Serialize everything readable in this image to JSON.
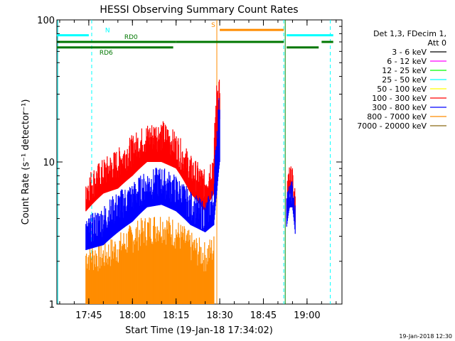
{
  "chart_data": {
    "type": "line",
    "title": "HESSI Observing Summary Count Rates",
    "xlabel": "Start Time (19-Jan-18 17:34:02)",
    "ylabel": "Count Rate (s⁻¹ detector⁻¹)",
    "y_scale": "log",
    "ylim": [
      1,
      100
    ],
    "xlim": [
      "17:34:02",
      "19:12:00"
    ],
    "x_ticks": [
      "17:45",
      "18:00",
      "18:15",
      "18:30",
      "18:45",
      "19:00"
    ],
    "y_ticks": [
      "1",
      "10",
      "100"
    ],
    "grid": false,
    "legend_placement": "right",
    "legend_header": [
      "Det 1,3, FDecim 1,",
      "Att 0"
    ],
    "series": [
      {
        "name": "3 - 6 keV",
        "color": "#000000"
      },
      {
        "name": "6 - 12 keV",
        "color": "#ff00ff"
      },
      {
        "name": "12 - 25 keV",
        "color": "#00ff00"
      },
      {
        "name": "25 - 50 keV",
        "color": "#00ffff"
      },
      {
        "name": "50 - 100 keV",
        "color": "#ffff00"
      },
      {
        "name": "100 - 300 keV",
        "color": "#ff0000"
      },
      {
        "name": "300 - 800 keV",
        "color": "#0000ff"
      },
      {
        "name": "800 - 7000 keV",
        "color": "#ff8c00"
      },
      {
        "name": "7000 - 20000 keV",
        "color": "#8b6914"
      }
    ],
    "envelopes": {
      "100 - 300 keV": {
        "x": [
          "17:44",
          "17:50",
          "17:55",
          "18:00",
          "18:05",
          "18:10",
          "18:15",
          "18:20",
          "18:25",
          "18:28",
          "18:29",
          "18:30"
        ],
        "low": [
          4.5,
          6,
          6.5,
          8,
          10,
          10,
          9,
          6,
          4.5,
          6,
          12,
          20
        ],
        "high": [
          6.5,
          8.5,
          10,
          12.5,
          15,
          16,
          13,
          9,
          7,
          10,
          30,
          36
        ]
      },
      "300 - 800 keV": {
        "x": [
          "17:44",
          "17:50",
          "17:55",
          "18:00",
          "18:05",
          "18:10",
          "18:15",
          "18:20",
          "18:25",
          "18:28",
          "18:29",
          "18:30"
        ],
        "low": [
          2.4,
          2.6,
          3.2,
          3.8,
          4.8,
          5,
          4.5,
          3.6,
          3.2,
          3.6,
          6,
          10
        ],
        "high": [
          3.2,
          4,
          5,
          5.8,
          7,
          7.5,
          6.5,
          5,
          4.2,
          5.5,
          15,
          26
        ]
      },
      "800 - 7000 keV": {
        "x": [
          "17:44",
          "17:50",
          "17:55",
          "18:00",
          "18:05",
          "18:10",
          "18:15",
          "18:20",
          "18:25",
          "18:28"
        ],
        "low": [
          1,
          1,
          1,
          1,
          1,
          1,
          1,
          1,
          1,
          1
        ],
        "high": [
          2.2,
          2.2,
          2.5,
          3,
          3.4,
          3.6,
          3.2,
          2.6,
          2.2,
          2.5
        ]
      },
      "after_gap_100 - 300 keV": {
        "x": [
          "18:53",
          "18:54",
          "18:55",
          "18:56"
        ],
        "low": [
          4,
          6,
          6,
          3.6
        ],
        "high": [
          6.5,
          7.5,
          7.5,
          5
        ]
      },
      "after_gap_300 - 800 keV": {
        "x": [
          "18:53",
          "18:54",
          "18:55",
          "18:56"
        ],
        "low": [
          3.5,
          4.8,
          4.8,
          3
        ],
        "high": [
          5.2,
          6,
          6,
          4
        ]
      }
    },
    "flag_bars": [
      {
        "label": "N",
        "color": "#00ffff",
        "start": "17:34",
        "end": "17:45",
        "level": 78
      },
      {
        "label": "",
        "color": "#00ffff",
        "start": "18:53",
        "end": "19:09",
        "level": 78
      },
      {
        "label": "S",
        "color": "#ff8c00",
        "start": "18:30",
        "end": "18:52",
        "level": 85
      },
      {
        "label": "RD0",
        "color": "#007700",
        "start": "17:34",
        "end": "18:15",
        "level": 70
      },
      {
        "label": "",
        "color": "#007700",
        "start": "18:15",
        "end": "18:52",
        "level": 70
      },
      {
        "label": "RD6",
        "color": "#007700",
        "start": "17:34",
        "end": "18:14",
        "level": 64
      },
      {
        "label": "",
        "color": "#007700",
        "start": "18:53",
        "end": "19:04",
        "level": 64
      },
      {
        "label": "",
        "color": "#007700",
        "start": "19:05",
        "end": "19:09",
        "level": 70
      }
    ],
    "vlines": [
      {
        "t": "17:34:20",
        "color": "#00ffff",
        "style": "solid"
      },
      {
        "t": "17:46",
        "color": "#00ffff",
        "style": "dashed"
      },
      {
        "t": "18:52",
        "color": "#00ffff",
        "style": "dashed"
      },
      {
        "t": "18:52:30",
        "color": "#008800",
        "style": "solid"
      },
      {
        "t": "19:08",
        "color": "#00ffff",
        "style": "dashed"
      },
      {
        "t": "18:29",
        "color": "#ff8c00",
        "style": "solid"
      }
    ]
  },
  "footer_date": "19-Jan-2018 12:30"
}
